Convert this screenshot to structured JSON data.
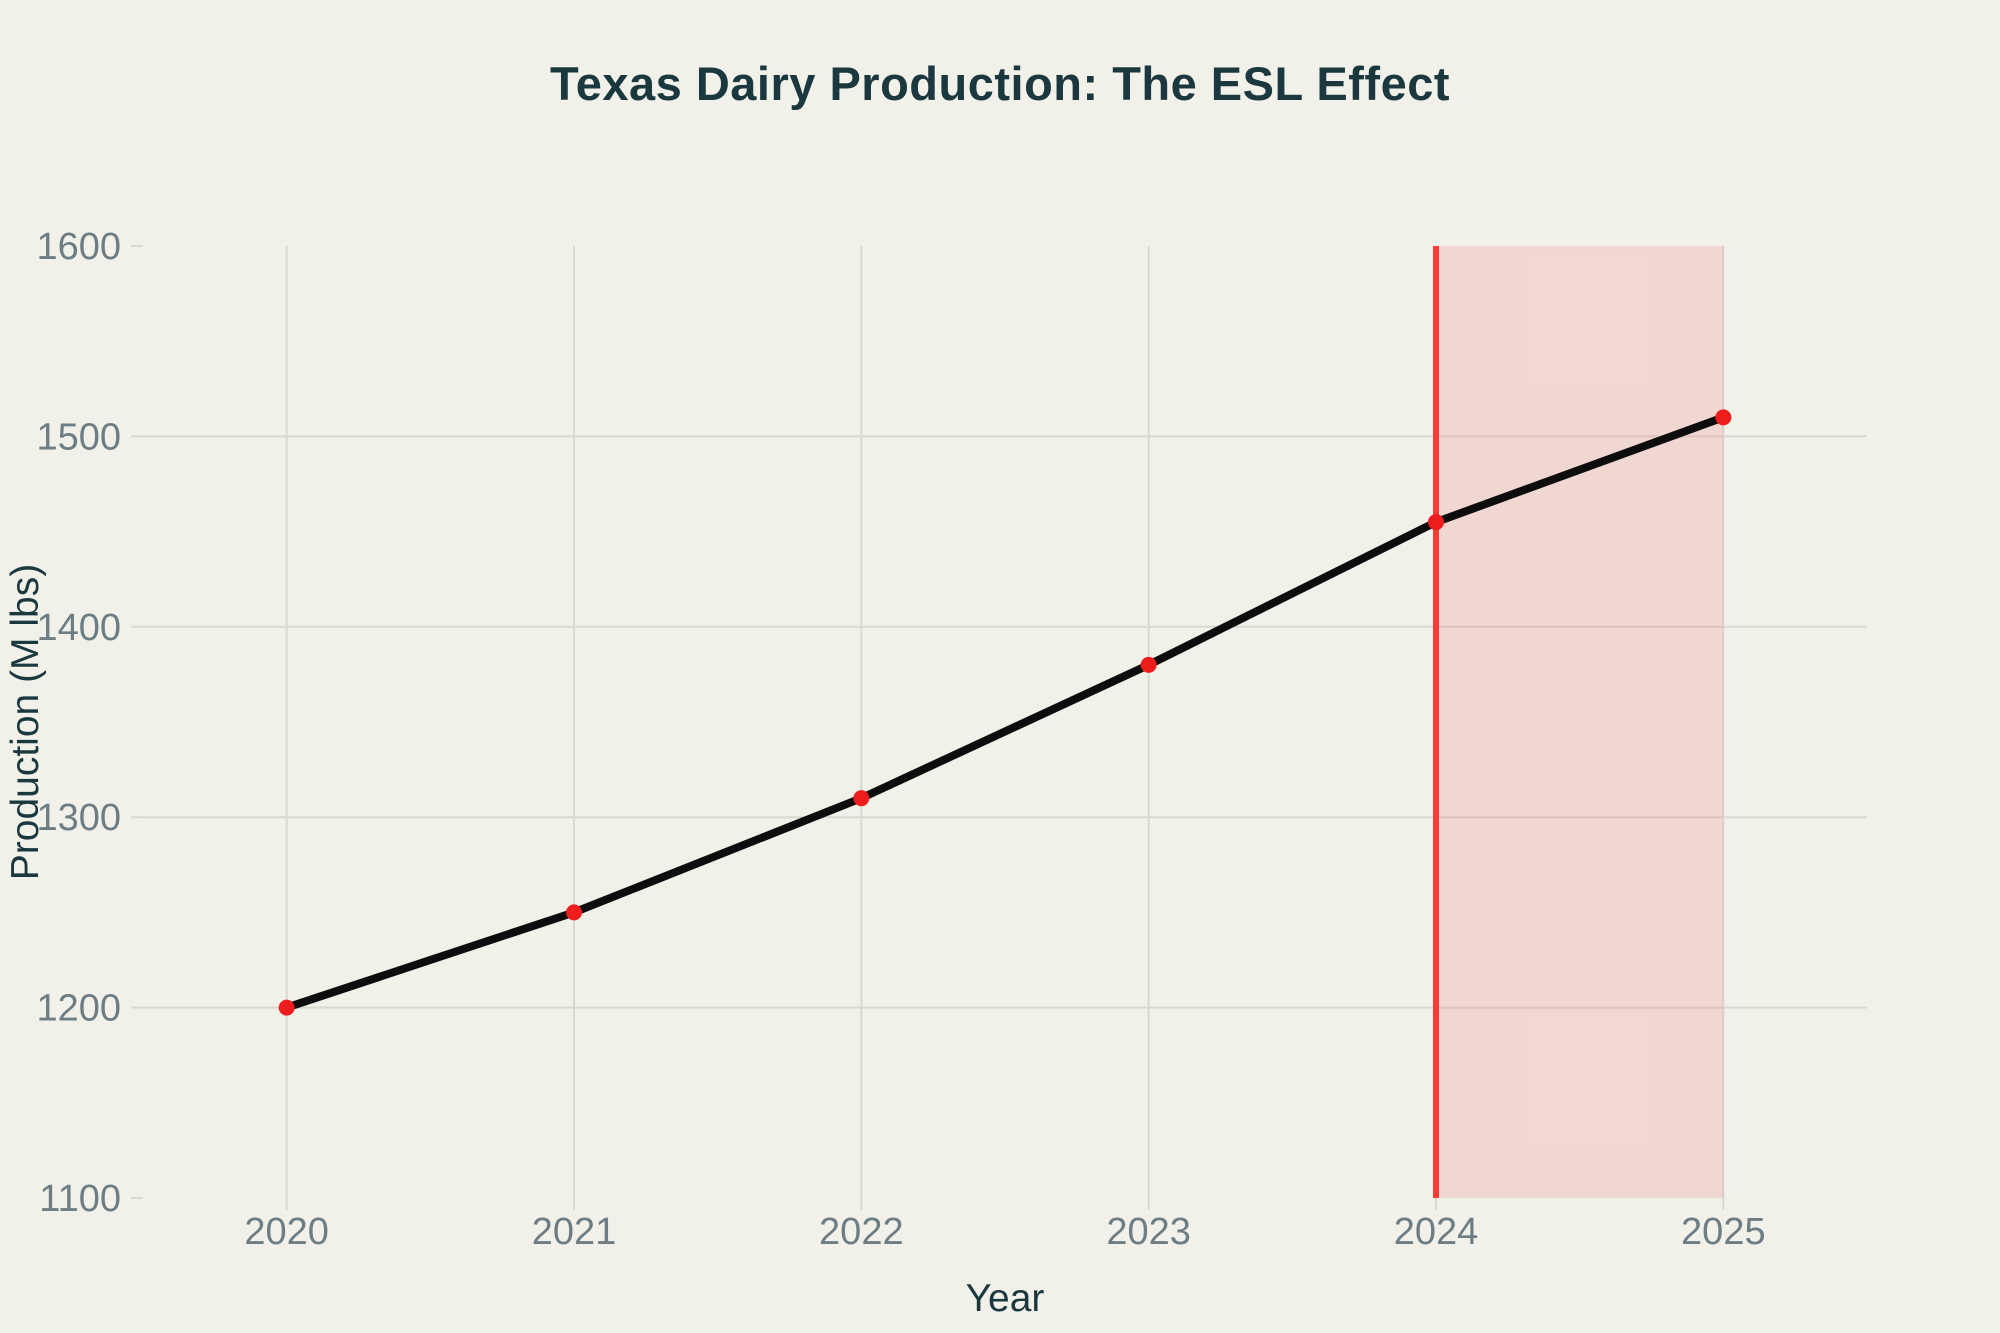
{
  "chart_data": {
    "type": "line",
    "title": "Texas Dairy Production: The ESL Effect",
    "xlabel": "Year",
    "ylabel": "Production (M lbs)",
    "x": [
      2020,
      2021,
      2022,
      2023,
      2024,
      2025
    ],
    "x_tick_labels": [
      "2020",
      "2021",
      "2022",
      "2023",
      "2024",
      "2025"
    ],
    "values": [
      1200,
      1250,
      1310,
      1380,
      1455,
      1510
    ],
    "xlim": [
      2019.5,
      2025.5
    ],
    "ylim": [
      1100,
      1600
    ],
    "y_ticks": [
      1100,
      1200,
      1300,
      1400,
      1500,
      1600
    ],
    "y_gridlines": [
      1200,
      1300,
      1400,
      1500
    ],
    "grid": true,
    "legend": "none",
    "annotations": {
      "vline_x": 2024,
      "shaded_region": {
        "x0": 2024,
        "x1": 2025
      }
    },
    "colors": {
      "background": "#f1f1ea",
      "line": "#0d0d0d",
      "marker": "#ee1d1d",
      "vline": "#f93b35",
      "region_fill": "rgba(248,49,47,0.13)",
      "gridline": "#d9d9d2",
      "tick_label": "#6d7d84",
      "title": "#1b383e"
    }
  }
}
